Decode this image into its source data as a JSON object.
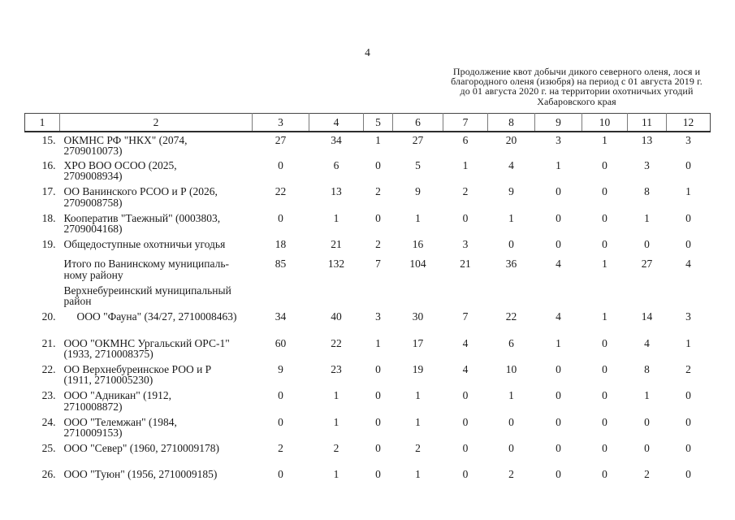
{
  "page": {
    "number": "4",
    "note": "Продолжение квот добычи дикого северного оленя, лося и\nблагородного оленя (изюбря) на период с 01 августа 2019 г.\nдо 01 августа 2020 г. на территории охотничьих угодий\nХабаровского края"
  },
  "table": {
    "column_numbers": [
      "1",
      "2",
      "3",
      "4",
      "5",
      "6",
      "7",
      "8",
      "9",
      "10",
      "11",
      "12"
    ],
    "rows": [
      {
        "num": "15.",
        "name": "ОКМНС РФ \"НКХ\" (2074,\n2709010073)",
        "values": [
          "27",
          "34",
          "1",
          "27",
          "6",
          "20",
          "3",
          "1",
          "13",
          "3"
        ]
      },
      {
        "num": "16.",
        "name": "ХРО ВОО ОСОО (2025,\n2709008934)",
        "values": [
          "0",
          "6",
          "0",
          "5",
          "1",
          "4",
          "1",
          "0",
          "3",
          "0"
        ]
      },
      {
        "num": "17.",
        "name": "ОО Ванинского РСОО и Р (2026,\n2709008758)",
        "values": [
          "22",
          "13",
          "2",
          "9",
          "2",
          "9",
          "0",
          "0",
          "8",
          "1"
        ]
      },
      {
        "num": "18.",
        "name": "Кооператив \"Таежный\" (0003803,\n2709004168)",
        "values": [
          "0",
          "1",
          "0",
          "1",
          "0",
          "1",
          "0",
          "0",
          "1",
          "0"
        ]
      },
      {
        "num": "19.",
        "name": "Общедоступные охотничьи угодья",
        "values": [
          "18",
          "21",
          "2",
          "16",
          "3",
          "0",
          "0",
          "0",
          "0",
          "0"
        ],
        "compact": true
      },
      {
        "num": "",
        "name": "Итого по Ванинскому муниципаль-\nному району",
        "values": [
          "85",
          "132",
          "7",
          "104",
          "21",
          "36",
          "4",
          "1",
          "27",
          "4"
        ]
      },
      {
        "num": "",
        "name": "Верхнебуреинский муниципальный\nрайон",
        "values": []
      },
      {
        "num": "20.",
        "name": "ООО \"Фауна\" (34/27, 2710008463)",
        "values": [
          "34",
          "40",
          "3",
          "30",
          "7",
          "22",
          "4",
          "1",
          "14",
          "3"
        ],
        "indent": true
      },
      {
        "num": "21.",
        "name": "ООО \"ОКМНС Ургальский ОРС-1\"\n(1933, 2710008375)",
        "values": [
          "60",
          "22",
          "1",
          "17",
          "4",
          "6",
          "1",
          "0",
          "4",
          "1"
        ]
      },
      {
        "num": "22.",
        "name": "ОО Верхнебуреинское РОО и Р\n(1911, 2710005230)",
        "values": [
          "9",
          "23",
          "0",
          "19",
          "4",
          "10",
          "0",
          "0",
          "8",
          "2"
        ]
      },
      {
        "num": "23.",
        "name": "ООО \"Адникан\" (1912,\n2710008872)",
        "values": [
          "0",
          "1",
          "0",
          "1",
          "0",
          "1",
          "0",
          "0",
          "1",
          "0"
        ]
      },
      {
        "num": "24.",
        "name": "ООО \"Телемжан\" (1984,\n2710009153)",
        "values": [
          "0",
          "1",
          "0",
          "1",
          "0",
          "0",
          "0",
          "0",
          "0",
          "0"
        ]
      },
      {
        "num": "25.",
        "name": "ООО \"Север\" (1960, 2710009178)",
        "values": [
          "2",
          "2",
          "0",
          "2",
          "0",
          "0",
          "0",
          "0",
          "0",
          "0"
        ]
      },
      {
        "num": "26.",
        "name": "ООО \"Туюн\" (1956, 2710009185)",
        "values": [
          "0",
          "1",
          "0",
          "1",
          "0",
          "2",
          "0",
          "0",
          "2",
          "0"
        ]
      }
    ]
  }
}
